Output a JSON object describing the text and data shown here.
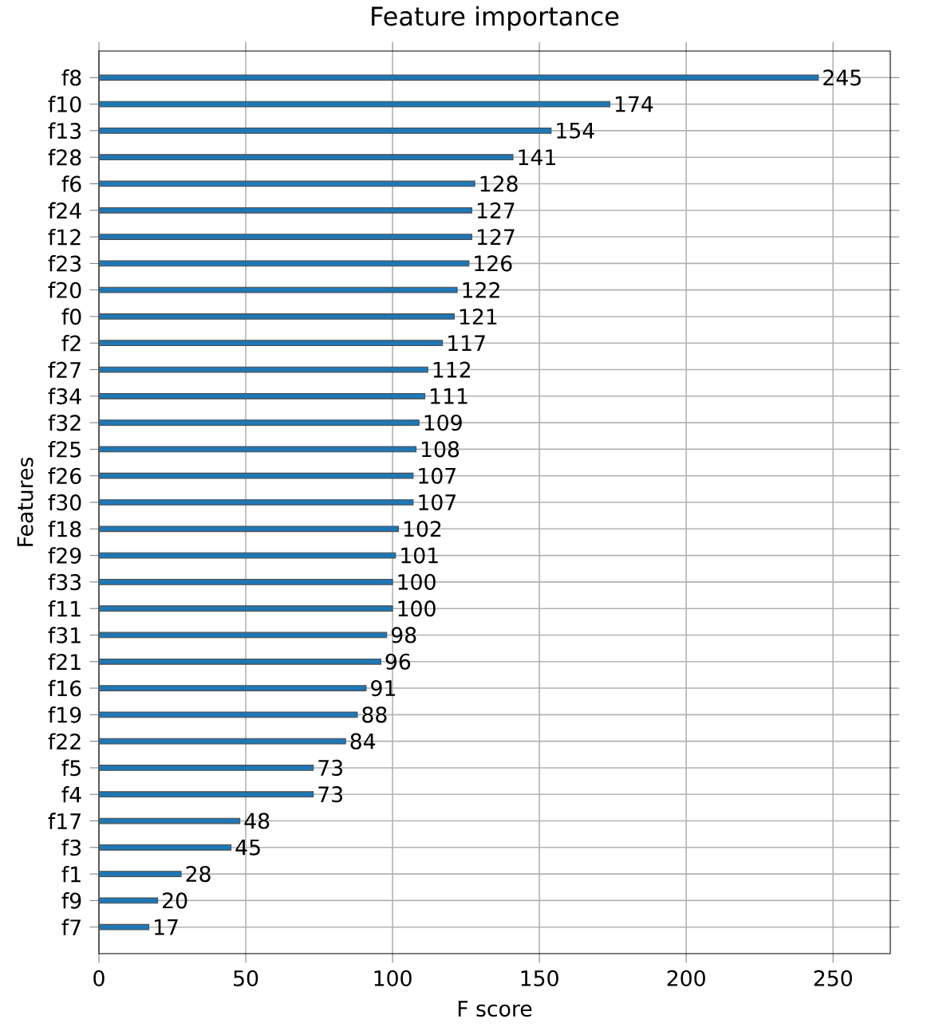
{
  "chart_data": {
    "type": "bar",
    "orientation": "horizontal",
    "title": "Feature importance",
    "xlabel": "F score",
    "ylabel": "Features",
    "categories": [
      "f8",
      "f10",
      "f13",
      "f28",
      "f6",
      "f24",
      "f12",
      "f23",
      "f20",
      "f0",
      "f2",
      "f27",
      "f34",
      "f32",
      "f25",
      "f26",
      "f30",
      "f18",
      "f29",
      "f33",
      "f11",
      "f31",
      "f21",
      "f16",
      "f19",
      "f22",
      "f5",
      "f4",
      "f17",
      "f3",
      "f1",
      "f9",
      "f7"
    ],
    "values": [
      245,
      174,
      154,
      141,
      128,
      127,
      127,
      126,
      122,
      121,
      117,
      112,
      111,
      109,
      108,
      107,
      107,
      102,
      101,
      100,
      100,
      98,
      96,
      91,
      88,
      84,
      73,
      73,
      48,
      45,
      28,
      20,
      17
    ],
    "color": "#1f77b4",
    "xlim": [
      0,
      269.5
    ],
    "xticks": [
      0,
      50,
      100,
      150,
      200,
      250
    ],
    "grid": true,
    "data_labels": true
  }
}
